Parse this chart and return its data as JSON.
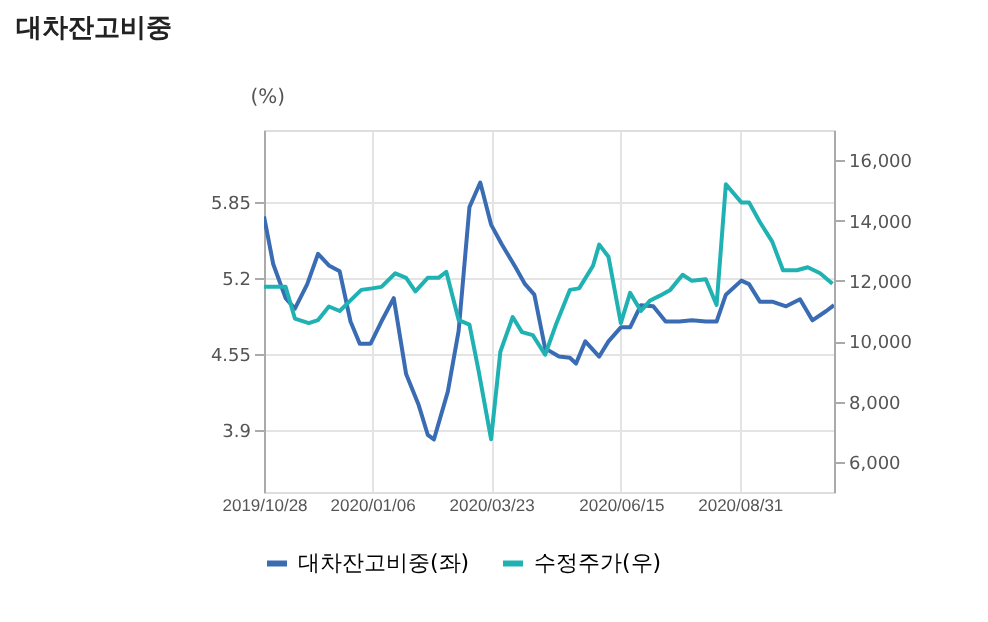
{
  "chart_data": {
    "type": "line",
    "title": "대차잔고비중",
    "ylabel": "(%)",
    "xlim": [
      "2019-10-28",
      "2020-10-31"
    ],
    "xticks": [
      {
        "value": "2019-10-28",
        "label": "2019/10/28"
      },
      {
        "value": "2020-01-06",
        "label": "2020/01/06"
      },
      {
        "value": "2020-03-23",
        "label": "2020/03/23"
      },
      {
        "value": "2020-06-15",
        "label": "2020/06/15"
      },
      {
        "value": "2020-08-31",
        "label": "2020/08/31"
      }
    ],
    "ylim": [
      3.37,
      6.47
    ],
    "yticks": [
      3.9,
      4.55,
      5.2,
      5.85
    ],
    "y2lim": [
      5000,
      17000
    ],
    "y2ticks": [
      {
        "value": 6000,
        "label": "6,000"
      },
      {
        "value": 8000,
        "label": "8,000"
      },
      {
        "value": 10000,
        "label": "10,000"
      },
      {
        "value": 12000,
        "label": "12,000"
      },
      {
        "value": 14000,
        "label": "14,000"
      },
      {
        "value": 16000,
        "label": "16,000"
      }
    ],
    "grid": true,
    "legend": "bottom",
    "line_style": "solid",
    "marker": "none",
    "series": [
      {
        "name": "대차잔고비중(좌)",
        "color": "#3a6cb4",
        "x": [
          "2019-10-28",
          "2019-11-03",
          "2019-11-11",
          "2019-11-17",
          "2019-11-25",
          "2019-12-02",
          "2019-12-09",
          "2019-12-16",
          "2019-12-23",
          "2019-12-29",
          "2020-01-05",
          "2020-01-12",
          "2020-01-20",
          "2020-01-28",
          "2020-02-05",
          "2020-02-11",
          "2020-02-15",
          "2020-02-24",
          "2020-03-02",
          "2020-03-09",
          "2020-03-16",
          "2020-03-23",
          "2020-03-30",
          "2020-04-08",
          "2020-04-14",
          "2020-04-20",
          "2020-04-27",
          "2020-05-06",
          "2020-05-13",
          "2020-05-17",
          "2020-05-23",
          "2020-06-01",
          "2020-06-07",
          "2020-06-15",
          "2020-06-21",
          "2020-06-28",
          "2020-07-06",
          "2020-07-14",
          "2020-07-23",
          "2020-07-31",
          "2020-08-09",
          "2020-08-16",
          "2020-08-22",
          "2020-09-01",
          "2020-09-06",
          "2020-09-13",
          "2020-09-21",
          "2020-09-30",
          "2020-10-09",
          "2020-10-17",
          "2020-10-26",
          "2020-10-31"
        ],
        "values": [
          5.73,
          5.32,
          5.03,
          4.94,
          5.15,
          5.41,
          5.31,
          5.26,
          4.83,
          4.64,
          4.64,
          4.83,
          5.03,
          4.38,
          4.12,
          3.86,
          3.82,
          4.23,
          4.75,
          5.81,
          6.02,
          5.66,
          5.49,
          5.29,
          5.15,
          5.06,
          4.6,
          4.53,
          4.52,
          4.47,
          4.66,
          4.53,
          4.66,
          4.78,
          4.78,
          4.97,
          4.96,
          4.83,
          4.83,
          4.84,
          4.83,
          4.83,
          5.06,
          5.18,
          5.15,
          5.0,
          5.0,
          4.96,
          5.02,
          4.84,
          4.92,
          4.97
        ]
      },
      {
        "name": "수정주가(우)",
        "color": "#20b2b2",
        "axis": "y2",
        "x": [
          "2019-10-28",
          "2019-11-11",
          "2019-11-17",
          "2019-11-26",
          "2019-12-02",
          "2019-12-09",
          "2019-12-16",
          "2019-12-24",
          "2019-12-30",
          "2020-01-06",
          "2020-01-12",
          "2020-01-21",
          "2020-01-28",
          "2020-02-03",
          "2020-02-11",
          "2020-02-18",
          "2020-02-23",
          "2020-03-02",
          "2020-03-09",
          "2020-03-15",
          "2020-03-23",
          "2020-03-29",
          "2020-04-06",
          "2020-04-12",
          "2020-04-19",
          "2020-04-27",
          "2020-05-04",
          "2020-05-13",
          "2020-05-19",
          "2020-05-28",
          "2020-06-01",
          "2020-06-07",
          "2020-06-15",
          "2020-06-21",
          "2020-06-28",
          "2020-07-04",
          "2020-07-10",
          "2020-07-17",
          "2020-07-25",
          "2020-07-31",
          "2020-08-09",
          "2020-08-16",
          "2020-08-22",
          "2020-09-01",
          "2020-09-06",
          "2020-09-13",
          "2020-09-21",
          "2020-09-28",
          "2020-10-07",
          "2020-10-14",
          "2020-10-22",
          "2020-10-30"
        ],
        "values": [
          11800,
          11800,
          10750,
          10600,
          10700,
          11150,
          11000,
          11400,
          11700,
          11750,
          11800,
          12250,
          12100,
          11650,
          12100,
          12100,
          12300,
          10700,
          10550,
          9000,
          6750,
          9650,
          10800,
          10300,
          10200,
          9550,
          10550,
          11700,
          11750,
          12500,
          13200,
          12800,
          10600,
          11600,
          11000,
          11350,
          11500,
          11700,
          12200,
          12000,
          12050,
          11200,
          15200,
          14600,
          14600,
          13950,
          13300,
          12350,
          12350,
          12450,
          12250,
          11900
        ]
      }
    ]
  }
}
